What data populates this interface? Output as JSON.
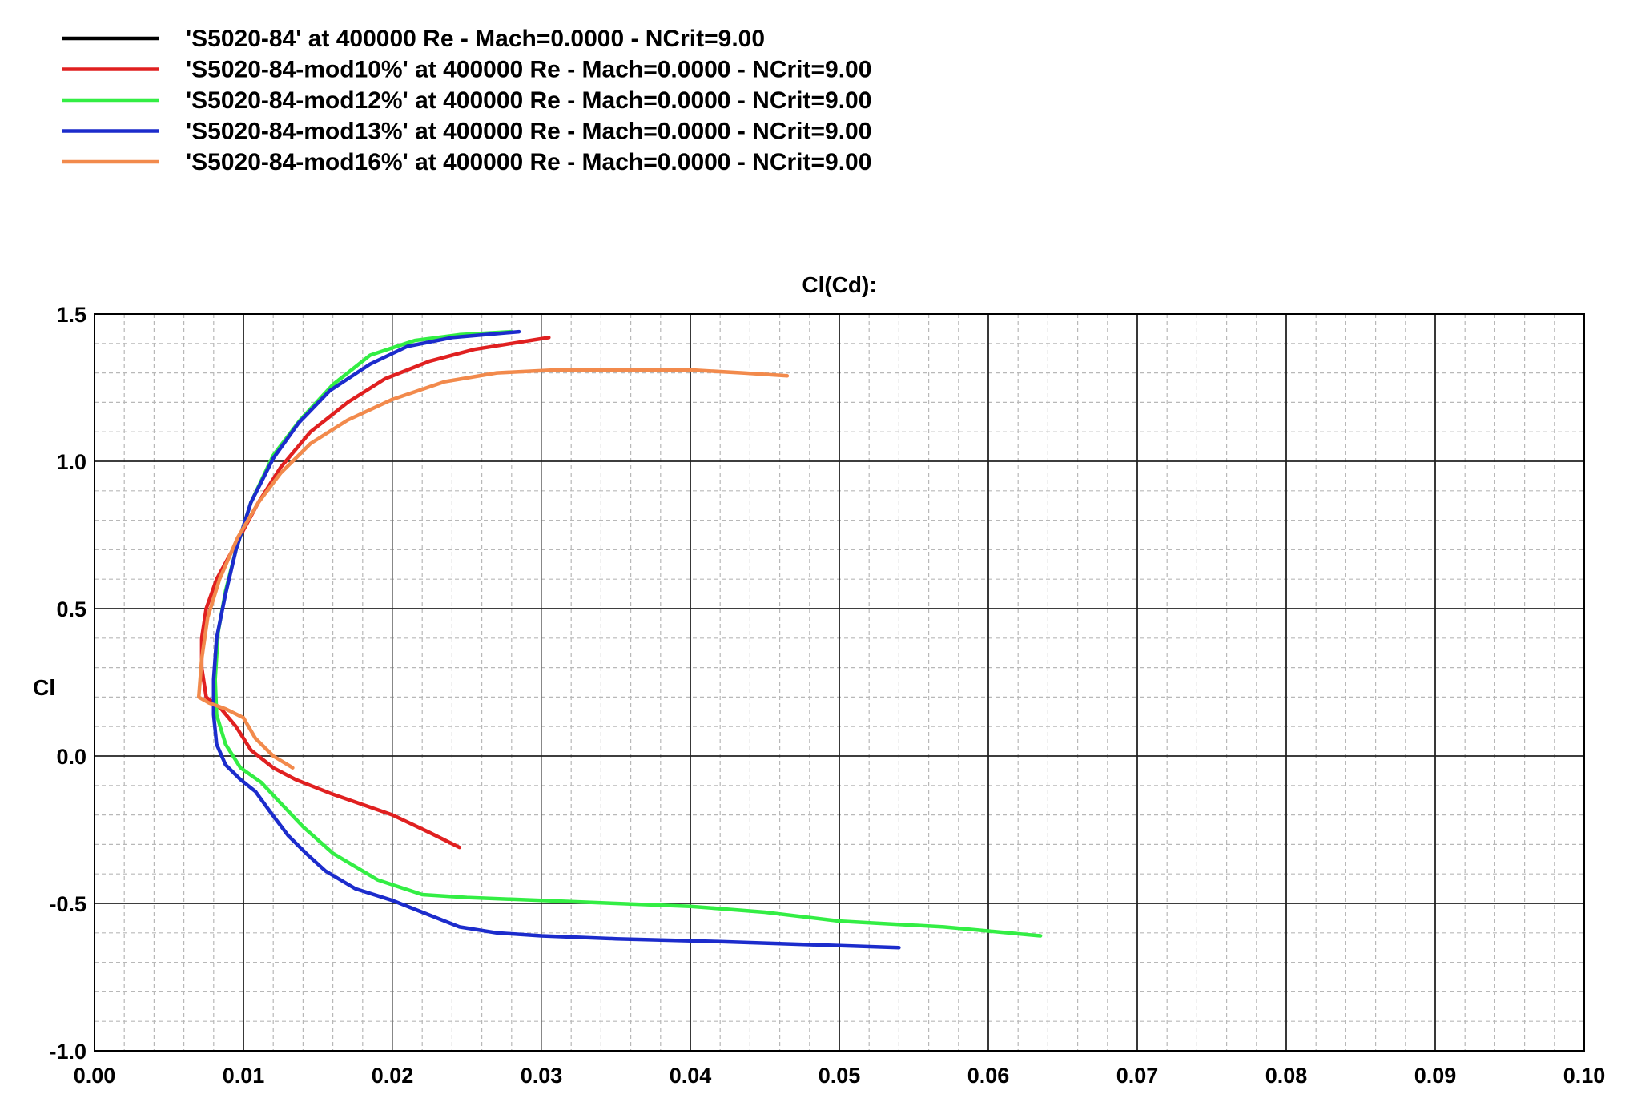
{
  "chart_data": {
    "type": "line",
    "title": "Cl(Cd):",
    "xlabel": "",
    "ylabel": "Cl",
    "xlim": [
      0.0,
      0.1
    ],
    "ylim": [
      -1.0,
      1.5
    ],
    "x_ticks": [
      "0.00",
      "0.01",
      "0.02",
      "0.03",
      "0.04",
      "0.05",
      "0.06",
      "0.07",
      "0.08",
      "0.09",
      "0.10"
    ],
    "y_ticks": [
      "1.5",
      "1.0",
      "0.5",
      "0.0",
      "-0.5",
      "-1.0"
    ],
    "grid": true,
    "legend_position": "top-left",
    "series": [
      {
        "name": "'S5020-84' at 400000 Re - Mach=0.0000 - NCrit=9.00",
        "color": "#000000",
        "x": [],
        "y": []
      },
      {
        "name": "'S5020-84-mod10%' at 400000 Re - Mach=0.0000 - NCrit=9.00",
        "color": "#e02020",
        "x": [
          0.0245,
          0.0225,
          0.02,
          0.016,
          0.0135,
          0.012,
          0.0105,
          0.0095,
          0.0085,
          0.0075,
          0.0072,
          0.0072,
          0.0075,
          0.0082,
          0.0095,
          0.011,
          0.0125,
          0.0145,
          0.017,
          0.0195,
          0.0225,
          0.0255,
          0.028,
          0.0305
        ],
        "y": [
          -0.31,
          -0.26,
          -0.2,
          -0.13,
          -0.08,
          -0.04,
          0.02,
          0.1,
          0.16,
          0.2,
          0.3,
          0.4,
          0.5,
          0.6,
          0.72,
          0.86,
          0.98,
          1.1,
          1.2,
          1.28,
          1.34,
          1.38,
          1.4,
          1.42
        ]
      },
      {
        "name": "'S5020-84-mod12%' at 400000 Re - Mach=0.0000 - NCrit=9.00",
        "color": "#33ee44",
        "x": [
          0.0635,
          0.057,
          0.05,
          0.045,
          0.04,
          0.035,
          0.03,
          0.025,
          0.022,
          0.019,
          0.016,
          0.014,
          0.0125,
          0.0112,
          0.0098,
          0.0088,
          0.0082,
          0.0081,
          0.0083,
          0.0088,
          0.0095,
          0.0105,
          0.012,
          0.0138,
          0.016,
          0.0185,
          0.0215,
          0.0245,
          0.028
        ],
        "y": [
          -0.61,
          -0.58,
          -0.56,
          -0.53,
          -0.51,
          -0.5,
          -0.49,
          -0.48,
          -0.47,
          -0.42,
          -0.33,
          -0.24,
          -0.16,
          -0.09,
          -0.04,
          0.04,
          0.14,
          0.26,
          0.42,
          0.56,
          0.7,
          0.86,
          1.02,
          1.14,
          1.26,
          1.36,
          1.41,
          1.43,
          1.44
        ]
      },
      {
        "name": "'S5020-84-mod13%' at 400000 Re - Mach=0.0000 - NCrit=9.00",
        "color": "#1c2ccc",
        "x": [
          0.054,
          0.048,
          0.042,
          0.035,
          0.03,
          0.027,
          0.0245,
          0.022,
          0.02,
          0.0175,
          0.0155,
          0.0142,
          0.013,
          0.0118,
          0.0108,
          0.0098,
          0.0088,
          0.0082,
          0.008,
          0.008,
          0.0082,
          0.0088,
          0.0095,
          0.0105,
          0.012,
          0.0137,
          0.0158,
          0.0185,
          0.021,
          0.024,
          0.0285
        ],
        "y": [
          -0.65,
          -0.64,
          -0.63,
          -0.62,
          -0.61,
          -0.6,
          -0.58,
          -0.53,
          -0.49,
          -0.45,
          -0.39,
          -0.33,
          -0.27,
          -0.19,
          -0.12,
          -0.08,
          -0.03,
          0.04,
          0.14,
          0.26,
          0.4,
          0.55,
          0.7,
          0.86,
          1.01,
          1.13,
          1.24,
          1.33,
          1.39,
          1.42,
          1.44
        ]
      },
      {
        "name": "'S5020-84-mod16%' at 400000 Re - Mach=0.0000 - NCrit=9.00",
        "color": "#f28a4c",
        "x": [
          0.0133,
          0.012,
          0.0108,
          0.01,
          0.0088,
          0.0077,
          0.007,
          0.0072,
          0.0076,
          0.0084,
          0.0096,
          0.011,
          0.0125,
          0.0145,
          0.017,
          0.02,
          0.0235,
          0.027,
          0.031,
          0.036,
          0.04,
          0.0435,
          0.0465
        ],
        "y": [
          -0.04,
          0.0,
          0.06,
          0.13,
          0.16,
          0.18,
          0.2,
          0.33,
          0.47,
          0.6,
          0.74,
          0.86,
          0.96,
          1.06,
          1.14,
          1.21,
          1.27,
          1.3,
          1.31,
          1.31,
          1.31,
          1.3,
          1.29
        ]
      }
    ]
  }
}
